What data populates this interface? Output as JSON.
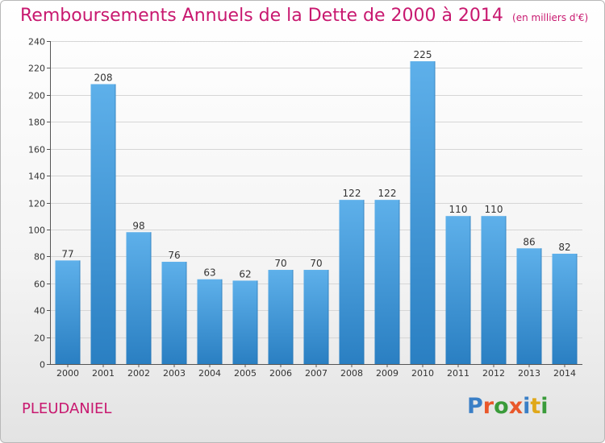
{
  "header": {
    "title": "Remboursements Annuels de la Dette de 2000 à 2014",
    "unit": "(en milliers d'€)"
  },
  "footer": {
    "commune": "PLEUDANIEL",
    "logo_text": "Proxiti",
    "logo_letters": [
      {
        "ch": "P",
        "color": "#3a7fc6"
      },
      {
        "ch": "r",
        "color": "#e9572a"
      },
      {
        "ch": "o",
        "color": "#3a9b3a"
      },
      {
        "ch": "x",
        "color": "#e9572a"
      },
      {
        "ch": "i",
        "color": "#3a7fc6"
      },
      {
        "ch": "t",
        "color": "#e0a81a"
      },
      {
        "ch": "i",
        "color": "#3a9b3a"
      }
    ]
  },
  "colors": {
    "accent": "#c8186f",
    "bar_light": "#5eb0ea",
    "bar_dark": "#2a7fc2",
    "grid": "#d6d6d6"
  },
  "chart_data": {
    "type": "bar",
    "title": "Remboursements Annuels de la Dette de 2000 à 2014",
    "ylabel": "",
    "xlabel": "",
    "categories": [
      "2000",
      "2001",
      "2002",
      "2003",
      "2004",
      "2005",
      "2006",
      "2007",
      "2008",
      "2009",
      "2010",
      "2011",
      "2012",
      "2013",
      "2014"
    ],
    "values": [
      77,
      208,
      98,
      76,
      63,
      62,
      70,
      70,
      122,
      122,
      225,
      110,
      110,
      86,
      82
    ],
    "ylim": [
      0,
      240
    ],
    "yticks": [
      0,
      20,
      40,
      60,
      80,
      100,
      120,
      140,
      160,
      180,
      200,
      220,
      240
    ],
    "grid": true,
    "data_labels": true
  }
}
